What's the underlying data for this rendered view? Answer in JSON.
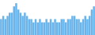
{
  "chart_data": {
    "type": "bar",
    "categories": [
      null,
      null,
      null,
      null,
      null,
      null,
      null,
      null,
      null,
      null,
      null,
      null,
      null,
      null,
      null,
      null,
      null,
      null,
      null,
      null,
      null,
      null,
      null,
      null,
      null,
      null,
      null,
      null,
      null,
      null,
      null,
      null,
      null,
      null,
      null,
      null,
      null,
      null,
      null,
      null,
      null,
      null,
      null,
      null
    ],
    "values": [
      5,
      6,
      5,
      6,
      7,
      7,
      9,
      10,
      8,
      7,
      6,
      7,
      6,
      5,
      5,
      4,
      5,
      4,
      5,
      4,
      4,
      5,
      4,
      5,
      4,
      5,
      4,
      4,
      5,
      5,
      4,
      5,
      5,
      6,
      6,
      5,
      5,
      4,
      5,
      6,
      5,
      6,
      8,
      9
    ],
    "color": "#6ab4ec",
    "ylim": [
      0,
      11
    ],
    "grid": false,
    "tick_labels": false
  }
}
